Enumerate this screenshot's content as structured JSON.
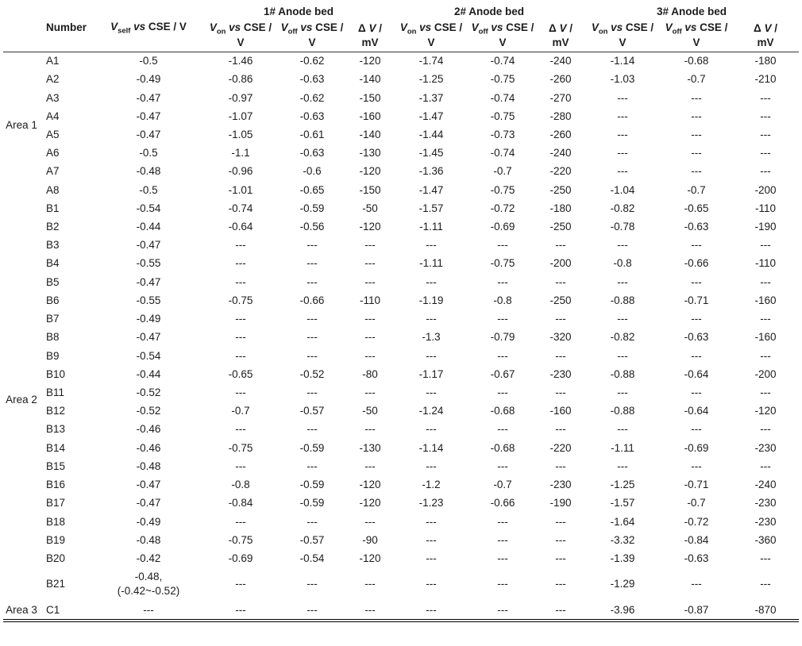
{
  "table": {
    "headers": {
      "number": "Number",
      "vself": {
        "v": "V",
        "sub": "self",
        "vs": " vs ",
        "rest": "CSE / V"
      },
      "von": {
        "v": "V",
        "sub": "on",
        "vs": " vs ",
        "rest": "CSE /",
        "line2": "V"
      },
      "voff": {
        "v": "V",
        "sub": "off",
        "vs": " vs ",
        "rest": "CSE /",
        "line2": "V"
      },
      "dv": {
        "delta": "Δ ",
        "v": "V",
        "rest": " /",
        "line2": "mV"
      }
    },
    "groups": [
      "1# Anode bed",
      "2# Anode bed",
      "3# Anode bed"
    ],
    "rows": [
      {
        "area": "Area 1",
        "area_span": 8,
        "number": "A1",
        "vself": "-0.5",
        "cells": [
          "-1.46",
          "-0.62",
          "-120",
          "-1.74",
          "-0.74",
          "-240",
          "-1.14",
          "-0.68",
          "-180"
        ]
      },
      {
        "number": "A2",
        "vself": "-0.49",
        "cells": [
          "-0.86",
          "-0.63",
          "-140",
          "-1.25",
          "-0.75",
          "-260",
          "-1.03",
          "-0.7",
          "-210"
        ]
      },
      {
        "number": "A3",
        "vself": "-0.47",
        "cells": [
          "-0.97",
          "-0.62",
          "-150",
          "-1.37",
          "-0.74",
          "-270",
          "---",
          "---",
          "---"
        ]
      },
      {
        "number": "A4",
        "vself": "-0.47",
        "cells": [
          "-1.07",
          "-0.63",
          "-160",
          "-1.47",
          "-0.75",
          "-280",
          "---",
          "---",
          "---"
        ]
      },
      {
        "number": "A5",
        "vself": "-0.47",
        "cells": [
          "-1.05",
          "-0.61",
          "-140",
          "-1.44",
          "-0.73",
          "-260",
          "---",
          "---",
          "---"
        ]
      },
      {
        "number": "A6",
        "vself": "-0.5",
        "cells": [
          "-1.1",
          "-0.63",
          "-130",
          "-1.45",
          "-0.74",
          "-240",
          "---",
          "---",
          "---"
        ]
      },
      {
        "number": "A7",
        "vself": "-0.48",
        "cells": [
          "-0.96",
          "-0.6",
          "-120",
          "-1.36",
          "-0.7",
          "-220",
          "---",
          "---",
          "---"
        ]
      },
      {
        "number": "A8",
        "vself": "-0.5",
        "cells": [
          "-1.01",
          "-0.65",
          "-150",
          "-1.47",
          "-0.75",
          "-250",
          "-1.04",
          "-0.7",
          "-200"
        ]
      },
      {
        "area": "Area 2",
        "area_span": 21,
        "number": "B1",
        "vself": "-0.54",
        "cells": [
          "-0.74",
          "-0.59",
          "-50",
          "-1.57",
          "-0.72",
          "-180",
          "-0.82",
          "-0.65",
          "-110"
        ]
      },
      {
        "number": "B2",
        "vself": "-0.44",
        "cells": [
          "-0.64",
          "-0.56",
          "-120",
          "-1.11",
          "-0.69",
          "-250",
          "-0.78",
          "-0.63",
          "-190"
        ]
      },
      {
        "number": "B3",
        "vself": "-0.47",
        "cells": [
          "---",
          "---",
          "---",
          "---",
          "---",
          "---",
          "---",
          "---",
          "---"
        ]
      },
      {
        "number": "B4",
        "vself": "-0.55",
        "cells": [
          "---",
          "---",
          "---",
          "-1.11",
          "-0.75",
          "-200",
          "-0.8",
          "-0.66",
          "-110"
        ]
      },
      {
        "number": "B5",
        "vself": "-0.47",
        "cells": [
          "---",
          "---",
          "---",
          "---",
          "---",
          "---",
          "---",
          "---",
          "---"
        ]
      },
      {
        "number": "B6",
        "vself": "-0.55",
        "cells": [
          "-0.75",
          "-0.66",
          "-110",
          "-1.19",
          "-0.8",
          "-250",
          "-0.88",
          "-0.71",
          "-160"
        ]
      },
      {
        "number": "B7",
        "vself": "-0.49",
        "cells": [
          "---",
          "---",
          "---",
          "---",
          "---",
          "---",
          "---",
          "---",
          "---"
        ]
      },
      {
        "number": "B8",
        "vself": "-0.47",
        "cells": [
          "---",
          "---",
          "---",
          "-1.3",
          "-0.79",
          "-320",
          "-0.82",
          "-0.63",
          "-160"
        ]
      },
      {
        "number": "B9",
        "vself": "-0.54",
        "cells": [
          "---",
          "---",
          "---",
          "---",
          "---",
          "---",
          "---",
          "---",
          "---"
        ]
      },
      {
        "number": "B10",
        "vself": "-0.44",
        "cells": [
          "-0.65",
          "-0.52",
          "-80",
          "-1.17",
          "-0.67",
          "-230",
          "-0.88",
          "-0.64",
          "-200"
        ]
      },
      {
        "number": "B11",
        "vself": "-0.52",
        "cells": [
          "---",
          "---",
          "---",
          "---",
          "---",
          "---",
          "---",
          "---",
          "---"
        ]
      },
      {
        "number": "B12",
        "vself": "-0.52",
        "cells": [
          "-0.7",
          "-0.57",
          "-50",
          "-1.24",
          "-0.68",
          "-160",
          "-0.88",
          "-0.64",
          "-120"
        ]
      },
      {
        "number": "B13",
        "vself": "-0.46",
        "cells": [
          "---",
          "---",
          "---",
          "---",
          "---",
          "---",
          "---",
          "---",
          "---"
        ]
      },
      {
        "number": "B14",
        "vself": "-0.46",
        "cells": [
          "-0.75",
          "-0.59",
          "-130",
          "-1.14",
          "-0.68",
          "-220",
          "-1.11",
          "-0.69",
          "-230"
        ]
      },
      {
        "number": "B15",
        "vself": "-0.48",
        "cells": [
          "---",
          "---",
          "---",
          "---",
          "---",
          "---",
          "---",
          "---",
          "---"
        ]
      },
      {
        "number": "B16",
        "vself": "-0.47",
        "cells": [
          "-0.8",
          "-0.59",
          "-120",
          "-1.2",
          "-0.7",
          "-230",
          "-1.25",
          "-0.71",
          "-240"
        ]
      },
      {
        "number": "B17",
        "vself": "-0.47",
        "cells": [
          "-0.84",
          "-0.59",
          "-120",
          "-1.23",
          "-0.66",
          "-190",
          "-1.57",
          "-0.7",
          "-230"
        ]
      },
      {
        "number": "B18",
        "vself": "-0.49",
        "cells": [
          "---",
          "---",
          "---",
          "---",
          "---",
          "---",
          "-1.64",
          "-0.72",
          "-230"
        ]
      },
      {
        "number": "B19",
        "vself": "-0.48",
        "cells": [
          "-0.75",
          "-0.57",
          "-90",
          "---",
          "---",
          "---",
          "-3.32",
          "-0.84",
          "-360"
        ]
      },
      {
        "number": "B20",
        "vself": "-0.42",
        "cells": [
          "-0.69",
          "-0.54",
          "-120",
          "---",
          "---",
          "---",
          "-1.39",
          "-0.63",
          "---"
        ]
      },
      {
        "number": "B21",
        "vself": [
          "-0.48,",
          "(-0.42~-0.52)"
        ],
        "cells": [
          "---",
          "---",
          "---",
          "---",
          "---",
          "---",
          "-1.29",
          "---",
          "---"
        ]
      },
      {
        "area": "Area 3",
        "area_span": 1,
        "number": "C1",
        "vself": "---",
        "cells": [
          "---",
          "---",
          "---",
          "---",
          "---",
          "---",
          "-3.96",
          "-0.87",
          "-870"
        ]
      }
    ]
  }
}
